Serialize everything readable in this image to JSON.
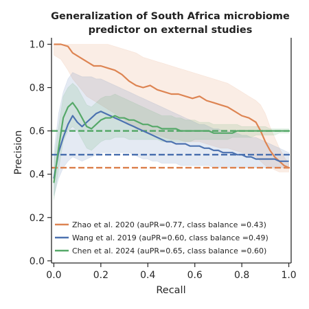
{
  "chart_data": {
    "type": "line",
    "title_lines": [
      "Generalization of South Africa microbiome",
      "predictor on external studies"
    ],
    "xlabel": "Recall",
    "ylabel": "Precision",
    "xlim": [
      -0.01,
      1.01
    ],
    "ylim": [
      -0.01,
      1.03
    ],
    "x_ticks": [
      {
        "value": 0.0,
        "label": "0.0"
      },
      {
        "value": 0.2,
        "label": "0.2"
      },
      {
        "value": 0.4,
        "label": "0.4"
      },
      {
        "value": 0.6,
        "label": "0.6"
      },
      {
        "value": 0.8,
        "label": "0.8"
      },
      {
        "value": 1.0,
        "label": "1.0"
      }
    ],
    "y_ticks": [
      {
        "value": 0.0,
        "label": "0.0"
      },
      {
        "value": 0.2,
        "label": "0.2"
      },
      {
        "value": 0.4,
        "label": "0.4"
      },
      {
        "value": 0.6,
        "label": "0.6"
      },
      {
        "value": 0.8,
        "label": "0.8"
      },
      {
        "value": 1.0,
        "label": "1.0"
      }
    ],
    "grid": false,
    "legend_position": "bottom-left",
    "series": [
      {
        "name": "Zhao et al. 2020 (auPR=0.77, class balance =0.43)",
        "color": "#dd8452",
        "baseline": 0.43,
        "x": [
          0.0,
          0.03,
          0.06,
          0.08,
          0.11,
          0.14,
          0.17,
          0.2,
          0.23,
          0.26,
          0.29,
          0.32,
          0.35,
          0.38,
          0.41,
          0.44,
          0.47,
          0.5,
          0.53,
          0.56,
          0.59,
          0.62,
          0.65,
          0.68,
          0.71,
          0.74,
          0.77,
          0.8,
          0.83,
          0.86,
          0.88,
          0.9,
          0.92,
          0.94,
          0.96,
          0.98,
          1.0
        ],
        "y": [
          1.0,
          1.0,
          0.99,
          0.96,
          0.94,
          0.92,
          0.9,
          0.9,
          0.89,
          0.88,
          0.86,
          0.83,
          0.81,
          0.8,
          0.81,
          0.79,
          0.78,
          0.77,
          0.77,
          0.76,
          0.75,
          0.76,
          0.74,
          0.73,
          0.72,
          0.71,
          0.69,
          0.67,
          0.66,
          0.64,
          0.6,
          0.55,
          0.51,
          0.48,
          0.46,
          0.44,
          0.43
        ],
        "y_low": [
          0.95,
          0.93,
          0.88,
          0.84,
          0.8,
          0.76,
          0.74,
          0.72,
          0.7,
          0.68,
          0.66,
          0.63,
          0.61,
          0.6,
          0.59,
          0.58,
          0.57,
          0.56,
          0.56,
          0.55,
          0.55,
          0.55,
          0.54,
          0.53,
          0.52,
          0.52,
          0.51,
          0.5,
          0.49,
          0.48,
          0.46,
          0.44,
          0.43,
          0.42,
          0.41,
          0.41,
          0.41
        ],
        "y_high": [
          1.0,
          1.0,
          1.0,
          1.0,
          1.0,
          1.0,
          1.0,
          1.0,
          1.0,
          0.99,
          0.98,
          0.97,
          0.96,
          0.94,
          0.93,
          0.92,
          0.91,
          0.9,
          0.89,
          0.88,
          0.87,
          0.86,
          0.85,
          0.84,
          0.83,
          0.82,
          0.8,
          0.78,
          0.76,
          0.74,
          0.72,
          0.68,
          0.62,
          0.57,
          0.52,
          0.48,
          0.45
        ]
      },
      {
        "name": "Wang et al. 2019 (auPR=0.60, class balance =0.49)",
        "color": "#4c72b0",
        "baseline": 0.49,
        "x": [
          0.0,
          0.02,
          0.04,
          0.06,
          0.08,
          0.1,
          0.12,
          0.14,
          0.16,
          0.18,
          0.2,
          0.22,
          0.24,
          0.26,
          0.28,
          0.3,
          0.32,
          0.34,
          0.36,
          0.38,
          0.4,
          0.42,
          0.44,
          0.46,
          0.48,
          0.5,
          0.52,
          0.54,
          0.56,
          0.58,
          0.6,
          0.62,
          0.64,
          0.66,
          0.68,
          0.7,
          0.72,
          0.74,
          0.76,
          0.78,
          0.8,
          0.82,
          0.84,
          0.86,
          0.88,
          0.9,
          0.92,
          0.94,
          0.96,
          0.98,
          1.0
        ],
        "y": [
          0.38,
          0.5,
          0.57,
          0.63,
          0.67,
          0.64,
          0.62,
          0.64,
          0.66,
          0.68,
          0.69,
          0.68,
          0.67,
          0.66,
          0.65,
          0.64,
          0.63,
          0.62,
          0.61,
          0.6,
          0.59,
          0.58,
          0.57,
          0.56,
          0.55,
          0.55,
          0.54,
          0.54,
          0.54,
          0.53,
          0.53,
          0.53,
          0.52,
          0.52,
          0.51,
          0.51,
          0.5,
          0.5,
          0.5,
          0.49,
          0.49,
          0.48,
          0.48,
          0.47,
          0.47,
          0.47,
          0.47,
          0.47,
          0.46,
          0.46,
          0.46
        ],
        "y_low": [
          0.3,
          0.38,
          0.43,
          0.46,
          0.48,
          0.47,
          0.46,
          0.47,
          0.48,
          0.49,
          0.5,
          0.5,
          0.5,
          0.5,
          0.5,
          0.5,
          0.5,
          0.49,
          0.48,
          0.47,
          0.47,
          0.46,
          0.46,
          0.45,
          0.45,
          0.45,
          0.45,
          0.44,
          0.44,
          0.44,
          0.44,
          0.44,
          0.44,
          0.44,
          0.43,
          0.43,
          0.43,
          0.43,
          0.43,
          0.43,
          0.43,
          0.43,
          0.43,
          0.43,
          0.43,
          0.43,
          0.43,
          0.43,
          0.43,
          0.43,
          0.43
        ],
        "y_high": [
          0.5,
          0.68,
          0.78,
          0.84,
          0.87,
          0.86,
          0.85,
          0.85,
          0.85,
          0.84,
          0.84,
          0.83,
          0.82,
          0.81,
          0.8,
          0.79,
          0.78,
          0.77,
          0.76,
          0.75,
          0.74,
          0.73,
          0.72,
          0.71,
          0.7,
          0.69,
          0.68,
          0.67,
          0.66,
          0.65,
          0.64,
          0.63,
          0.63,
          0.62,
          0.61,
          0.61,
          0.6,
          0.6,
          0.59,
          0.59,
          0.58,
          0.58,
          0.57,
          0.57,
          0.56,
          0.55,
          0.54,
          0.53,
          0.52,
          0.51,
          0.5
        ]
      },
      {
        "name": "Chen et al. 2024 (auPR=0.65, class balance =0.60)",
        "color": "#55a868",
        "baseline": 0.6,
        "x": [
          0.0,
          0.02,
          0.04,
          0.06,
          0.08,
          0.1,
          0.12,
          0.14,
          0.16,
          0.18,
          0.2,
          0.22,
          0.24,
          0.26,
          0.28,
          0.3,
          0.32,
          0.34,
          0.36,
          0.38,
          0.4,
          0.42,
          0.44,
          0.46,
          0.48,
          0.5,
          0.52,
          0.54,
          0.56,
          0.58,
          0.6,
          0.62,
          0.64,
          0.66,
          0.68,
          0.7,
          0.72,
          0.74,
          0.76,
          0.78,
          0.8,
          0.82,
          0.84,
          0.86,
          0.88,
          0.9,
          0.92,
          0.94,
          0.96,
          0.98,
          1.0
        ],
        "y": [
          0.36,
          0.52,
          0.66,
          0.71,
          0.73,
          0.7,
          0.66,
          0.62,
          0.61,
          0.63,
          0.65,
          0.66,
          0.66,
          0.67,
          0.66,
          0.66,
          0.65,
          0.65,
          0.64,
          0.63,
          0.63,
          0.62,
          0.62,
          0.61,
          0.61,
          0.61,
          0.61,
          0.6,
          0.6,
          0.6,
          0.6,
          0.6,
          0.6,
          0.6,
          0.59,
          0.59,
          0.59,
          0.59,
          0.59,
          0.6,
          0.6,
          0.6,
          0.6,
          0.6,
          0.6,
          0.6,
          0.6,
          0.6,
          0.6,
          0.6,
          0.6
        ],
        "y_low": [
          0.28,
          0.42,
          0.55,
          0.6,
          0.62,
          0.6,
          0.56,
          0.52,
          0.51,
          0.53,
          0.55,
          0.56,
          0.56,
          0.57,
          0.57,
          0.57,
          0.56,
          0.56,
          0.56,
          0.56,
          0.56,
          0.56,
          0.56,
          0.55,
          0.55,
          0.55,
          0.55,
          0.55,
          0.55,
          0.55,
          0.56,
          0.56,
          0.56,
          0.56,
          0.56,
          0.56,
          0.56,
          0.56,
          0.57,
          0.57,
          0.57,
          0.57,
          0.57,
          0.58,
          0.58,
          0.58,
          0.58,
          0.58,
          0.59,
          0.59,
          0.59
        ],
        "y_high": [
          0.46,
          0.62,
          0.76,
          0.8,
          0.82,
          0.8,
          0.76,
          0.72,
          0.71,
          0.73,
          0.75,
          0.76,
          0.76,
          0.77,
          0.76,
          0.75,
          0.74,
          0.73,
          0.72,
          0.71,
          0.7,
          0.69,
          0.68,
          0.67,
          0.67,
          0.67,
          0.66,
          0.66,
          0.65,
          0.65,
          0.65,
          0.64,
          0.64,
          0.64,
          0.63,
          0.63,
          0.63,
          0.63,
          0.63,
          0.63,
          0.62,
          0.62,
          0.62,
          0.62,
          0.62,
          0.62,
          0.61,
          0.61,
          0.61,
          0.61,
          0.61
        ]
      }
    ]
  }
}
